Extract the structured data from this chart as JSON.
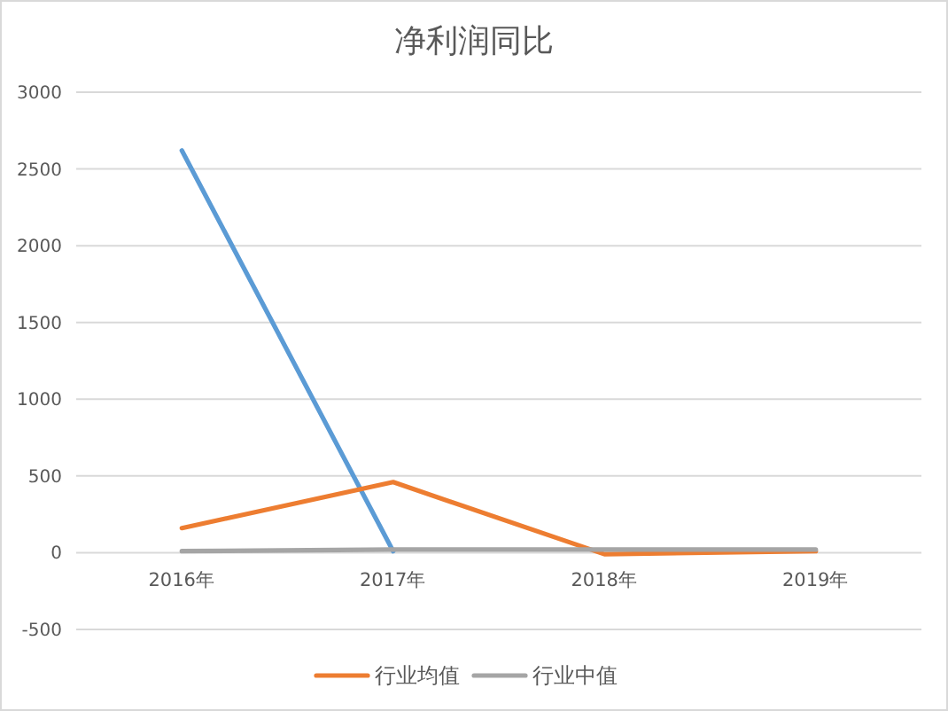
{
  "chart_data": {
    "type": "line",
    "title": "净利润同比",
    "categories": [
      "2016年",
      "2017年",
      "2018年",
      "2019年"
    ],
    "series": [
      {
        "color": "#5b9bd5",
        "values": [
          2620,
          10,
          null,
          null
        ]
      },
      {
        "name": "行业均值",
        "color": "#ed7d31",
        "values": [
          160,
          460,
          -10,
          10
        ]
      },
      {
        "name": "行业中值",
        "color": "#a5a5a5",
        "values": [
          10,
          20,
          20,
          20
        ]
      }
    ],
    "ylim": [
      -500,
      3000
    ],
    "yticks": [
      -500,
      0,
      500,
      1000,
      1500,
      2000,
      2500,
      3000
    ],
    "grid": "y",
    "legend": "bottom"
  }
}
